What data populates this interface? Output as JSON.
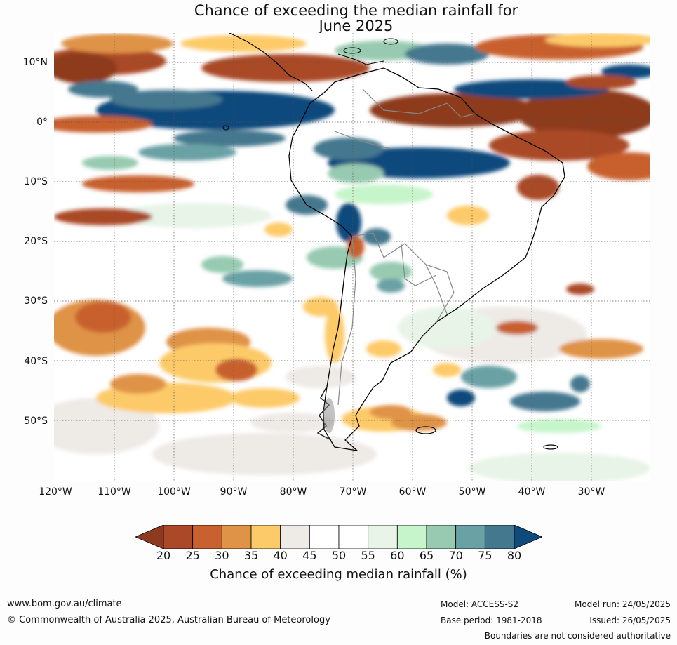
{
  "title_line1": "Chance of exceeding the median rainfall for",
  "title_line2": "June 2025",
  "map": {
    "lat_labels": [
      "10°N",
      "0°",
      "10°S",
      "20°S",
      "30°S",
      "40°S",
      "50°S"
    ],
    "lon_labels": [
      "120°W",
      "110°W",
      "100°W",
      "90°W",
      "80°W",
      "70°W",
      "60°W",
      "50°W",
      "40°W",
      "30°W"
    ]
  },
  "colorbar": {
    "ticks": [
      "20",
      "25",
      "30",
      "35",
      "40",
      "45",
      "50",
      "55",
      "60",
      "65",
      "70",
      "75",
      "80"
    ],
    "colors": [
      "#8e3a1f",
      "#aa4827",
      "#c8612f",
      "#df9346",
      "#fdca69",
      "#eeeae6",
      "#ffffff",
      "#ffffff",
      "#e8f4e8",
      "#c6f5cb",
      "#97cab1",
      "#6aa1a5",
      "#44788f",
      "#0f4a7c"
    ],
    "label": "Chance of exceeding median rainfall (%)"
  },
  "footer": {
    "website": "www.bom.gov.au/climate",
    "copyright": "© Commonwealth of Australia 2025, Australian Bureau of Meteorology",
    "model": "Model: ACCESS-S2",
    "base_period": "Base period: 1981-2018",
    "model_run": "Model run: 24/05/2025",
    "issued": "Issued: 26/05/2025",
    "disclaimer": "Boundaries are not considered authoritative"
  }
}
